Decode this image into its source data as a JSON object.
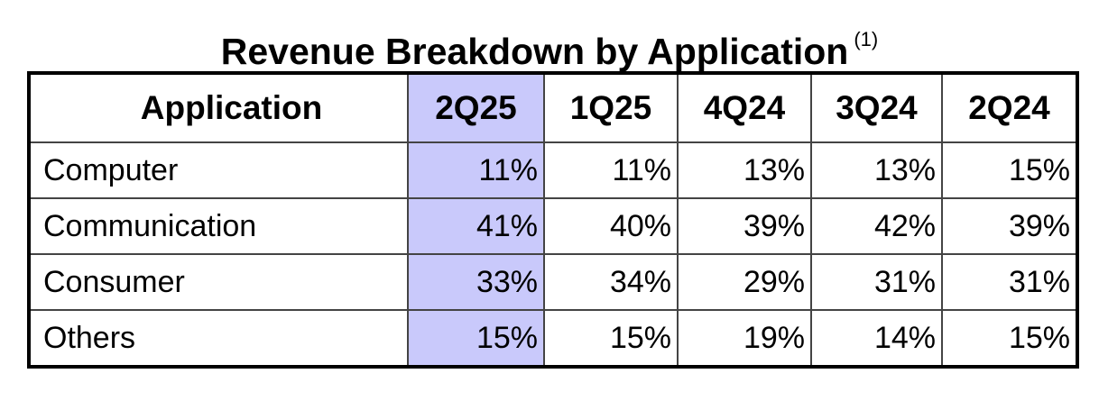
{
  "title": "Revenue Breakdown by Application",
  "title_note": "(1)",
  "table": {
    "header": [
      "Application",
      "2Q25",
      "1Q25",
      "4Q24",
      "3Q24",
      "2Q24"
    ],
    "rows": [
      [
        "Computer",
        "11%",
        "11%",
        "13%",
        "13%",
        "15%"
      ],
      [
        "Communication",
        "41%",
        "40%",
        "39%",
        "42%",
        "39%"
      ],
      [
        "Consumer",
        "33%",
        "34%",
        "29%",
        "31%",
        "31%"
      ],
      [
        "Others",
        "15%",
        "15%",
        "19%",
        "14%",
        "15%"
      ]
    ]
  }
}
